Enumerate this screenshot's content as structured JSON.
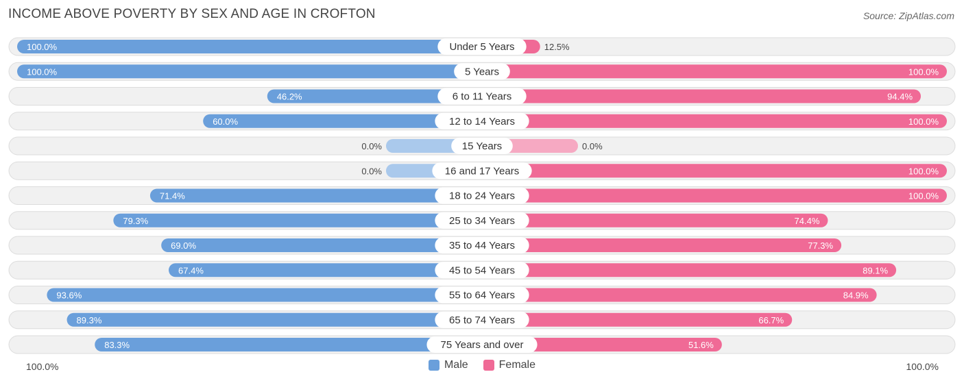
{
  "header": {
    "title": "INCOME ABOVE POVERTY BY SEX AND AGE IN CROFTON",
    "source": "Source: ZipAtlas.com"
  },
  "colors": {
    "male_strong": "#6a9fdb",
    "male_light": "#aac9ec",
    "female_strong": "#f06a96",
    "female_light": "#f6a9c2"
  },
  "legend": {
    "male": "Male",
    "female": "Female"
  },
  "axis": {
    "left_label": "100.0%",
    "right_label": "100.0%"
  },
  "chart_data": {
    "type": "bar",
    "orientation": "horizontal-diverging",
    "title": "INCOME ABOVE POVERTY BY SEX AND AGE IN CROFTON",
    "categories": [
      "Under 5 Years",
      "5 Years",
      "6 to 11 Years",
      "12 to 14 Years",
      "15 Years",
      "16 and 17 Years",
      "18 to 24 Years",
      "25 to 34 Years",
      "35 to 44 Years",
      "45 to 54 Years",
      "55 to 64 Years",
      "65 to 74 Years",
      "75 Years and over"
    ],
    "series": [
      {
        "name": "Male",
        "values": [
          100.0,
          100.0,
          46.2,
          60.0,
          0.0,
          0.0,
          71.4,
          79.3,
          69.0,
          67.4,
          93.6,
          89.3,
          83.3
        ],
        "labels": [
          "100.0%",
          "100.0%",
          "46.2%",
          "60.0%",
          "0.0%",
          "0.0%",
          "71.4%",
          "79.3%",
          "69.0%",
          "67.4%",
          "93.6%",
          "89.3%",
          "83.3%"
        ]
      },
      {
        "name": "Female",
        "values": [
          12.5,
          100.0,
          94.4,
          100.0,
          0.0,
          100.0,
          100.0,
          74.4,
          77.3,
          89.1,
          84.9,
          66.7,
          51.6
        ],
        "labels": [
          "12.5%",
          "100.0%",
          "94.4%",
          "100.0%",
          "0.0%",
          "100.0%",
          "100.0%",
          "74.4%",
          "77.3%",
          "89.1%",
          "84.9%",
          "66.7%",
          "51.6%"
        ]
      }
    ],
    "xlim": [
      -100,
      100
    ],
    "unit": "%"
  }
}
